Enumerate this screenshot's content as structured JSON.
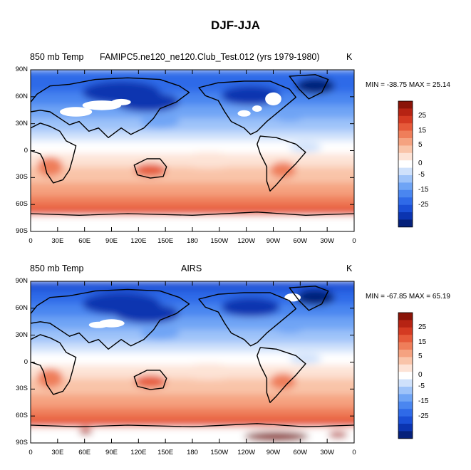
{
  "figure_title": "DJF-JJA",
  "palette": [
    "#05207a",
    "#0b34b0",
    "#1a4fd6",
    "#2f6ae8",
    "#4a86f0",
    "#6fa4f5",
    "#9ec3f9",
    "#cfe1fb",
    "#ffffff",
    "#fde3d6",
    "#f9c4a9",
    "#f5a280",
    "#ef7e5a",
    "#e65a3a",
    "#d43a22",
    "#b62313",
    "#8a1408"
  ],
  "chart_data": [
    {
      "type": "heatmap",
      "title": "",
      "left_label": "850 mb Temp",
      "center_label": "FAMIPC5.ne120_ne120.Club_Test.012 (yrs 1979-1980)",
      "units_label": "K",
      "stats": "MIN = -38.75 MAX =  25.14",
      "lat_ticks": [
        "90N",
        "60N",
        "30N",
        "0",
        "30S",
        "60S",
        "90S"
      ],
      "lon_ticks": [
        "0",
        "30E",
        "60E",
        "90E",
        "120E",
        "150E",
        "180",
        "150W",
        "120W",
        "90W",
        "60W",
        "30W",
        "0"
      ],
      "colorbar_ticks": [
        "25",
        "15",
        "5",
        "0",
        "-5",
        "-15",
        "-25"
      ],
      "value_range": [
        -38.75,
        25.14
      ]
    },
    {
      "type": "heatmap",
      "title": "",
      "left_label": "850 mb Temp",
      "center_label": "AIRS",
      "units_label": "K",
      "stats": "MIN = -67.85 MAX =  65.19",
      "lat_ticks": [
        "90N",
        "60N",
        "30N",
        "0",
        "30S",
        "60S",
        "90S"
      ],
      "lon_ticks": [
        "0",
        "30E",
        "60E",
        "90E",
        "120E",
        "150E",
        "180",
        "150W",
        "120W",
        "90W",
        "60W",
        "30W",
        "0"
      ],
      "colorbar_ticks": [
        "25",
        "15",
        "5",
        "0",
        "-5",
        "-15",
        "-25"
      ],
      "value_range": [
        -67.85,
        65.19
      ]
    }
  ]
}
